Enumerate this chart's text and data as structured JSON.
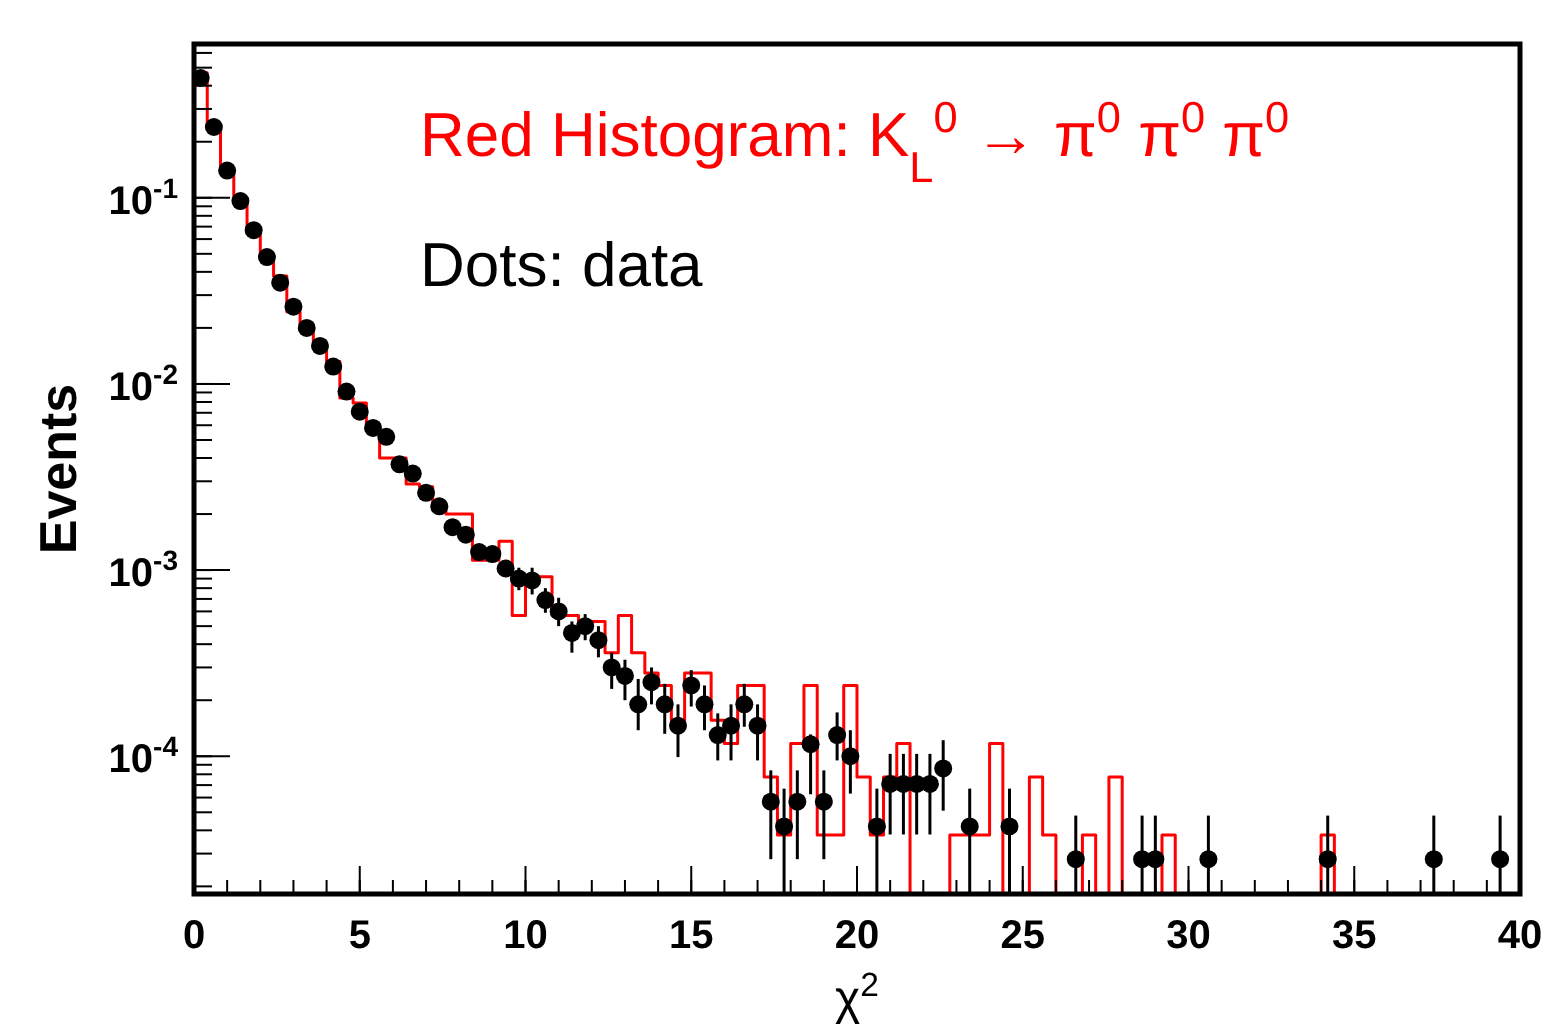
{
  "chart_data": {
    "type": "histogram",
    "xlabel": "χ$^{2}$",
    "ylabel": "Events",
    "annotations": [
      "Red Histogram: K$_{L}$$^{0}$ → π$^{0}$ π$^{0}$ π$^{0}$",
      "Dots: data"
    ],
    "log": "y",
    "grid": false,
    "marker": "circle",
    "xlim": [
      0,
      40
    ],
    "xticks": [
      0,
      5,
      10,
      15,
      20,
      25,
      30,
      35,
      40
    ],
    "ylim": [
      1.82e-05,
      0.67
    ],
    "yticks": [
      {
        "value": 0.0001,
        "label": "10$^{-4}$"
      },
      {
        "value": 0.001,
        "label": "10$^{-3}$"
      },
      {
        "value": 0.01,
        "label": "10$^{-2}$"
      },
      {
        "value": 0.1,
        "label": "10$^{-1}$"
      }
    ],
    "bins": [
      0,
      0.4,
      0.8,
      1.2,
      1.6,
      2,
      2.4,
      2.8,
      3.2,
      3.6,
      4,
      4.4,
      4.8,
      5.2,
      5.6,
      6,
      6.4,
      6.8,
      7.2,
      7.6,
      8,
      8.4,
      8.8,
      9.2,
      9.6,
      10,
      10.4,
      10.8,
      11.2,
      11.6,
      12,
      12.4,
      12.8,
      13.2,
      13.6,
      14,
      14.4,
      14.8,
      15.2,
      15.6,
      16,
      16.4,
      16.8,
      17.2,
      17.6,
      18,
      18.4,
      18.8,
      19.2,
      19.6,
      20,
      20.4,
      20.8,
      21.2,
      21.6,
      22,
      22.4,
      22.8,
      23.2,
      23.6,
      24,
      24.4,
      24.8,
      25.2,
      25.6,
      26,
      26.4,
      26.8,
      27.2,
      27.6,
      28,
      28.4,
      28.8,
      29.2,
      29.6,
      30,
      30.4,
      30.8,
      31.2,
      31.6,
      32,
      32.4,
      32.8,
      33.2,
      33.6,
      34,
      34.4,
      34.8,
      35.2,
      35.6,
      36,
      36.4,
      36.8,
      37.2,
      37.6,
      38,
      38.4,
      38.8,
      39.2,
      39.6,
      40
    ],
    "series": [
      {
        "color": "#ff0000",
        "values": [
          0.47,
          0.245,
          0.14,
          0.1,
          0.065,
          0.048,
          0.038,
          0.0244,
          0.0204,
          0.0165,
          0.0132,
          0.0084,
          0.0079,
          0.0061,
          0.004,
          0.004,
          0.0029,
          0.0028,
          0.0021,
          0.002,
          0.002,
          0.00113,
          0.00113,
          0.00143,
          0.00057,
          0.00092,
          0.00092,
          0.00057,
          0.00057,
          0.00053,
          0.00053,
          0.00036,
          0.00057,
          0.00036,
          0.00028,
          0.00024,
          0.000156,
          0.00028,
          0.00028,
          0.000156,
          0.000117,
          0.00024,
          0.00024,
          7.74e-05,
          3.78e-05,
          0.000117,
          0.00024,
          3.78e-05,
          3.78e-05,
          0.00024,
          7.74e-05,
          3.78e-05,
          7.74e-05,
          0.000117,
          null,
          null,
          null,
          3.78e-05,
          3.78e-05,
          3.78e-05,
          0.000117,
          null,
          null,
          7.74e-05,
          3.78e-05,
          null,
          null,
          3.78e-05,
          null,
          7.74e-05,
          null,
          null,
          null,
          3.78e-05,
          null,
          null,
          null,
          null,
          null,
          null,
          null,
          null,
          null,
          null,
          null,
          3.78e-05,
          null,
          null,
          null,
          null,
          null,
          null,
          null,
          null,
          null,
          null,
          null,
          null,
          null,
          null
        ]
      },
      {
        "type": "scatter",
        "color": "#000000",
        "x": [
          0.2,
          0.6,
          1,
          1.4,
          1.8,
          2.2,
          2.6,
          3,
          3.4,
          3.8,
          4.2,
          4.6,
          5,
          5.4,
          5.8,
          6.2,
          6.6,
          7,
          7.4,
          7.8,
          8.2,
          8.6,
          9,
          9.4,
          9.8,
          10.2,
          10.6,
          11,
          11.4,
          11.8,
          12.2,
          12.6,
          13,
          13.4,
          13.8,
          14.2,
          14.6,
          15,
          15.4,
          15.8,
          16.2,
          16.6,
          17,
          17.4,
          17.8,
          18.2,
          18.6,
          19,
          19.4,
          19.8,
          20.6,
          21,
          21.4,
          21.8,
          22.2,
          22.6,
          23.4,
          24.6,
          26.6,
          28.6,
          29,
          30.6,
          34.2,
          37.4,
          39.4
        ],
        "values": [
          0.44,
          0.24,
          0.14,
          0.096,
          0.067,
          0.048,
          0.035,
          0.026,
          0.02,
          0.016,
          0.0124,
          0.0091,
          0.0071,
          0.0058,
          0.0052,
          0.0037,
          0.0033,
          0.0026,
          0.0022,
          0.0017,
          0.00155,
          0.00125,
          0.00122,
          0.00102,
          0.0009,
          0.00088,
          0.00069,
          0.0006,
          0.00046,
          0.0005,
          0.00042,
          0.0003,
          0.00027,
          0.00019,
          0.00025,
          0.00019,
          0.000146,
          0.00024,
          0.00019,
          0.00013,
          0.000146,
          0.00019,
          0.000146,
          5.7e-05,
          4.2e-05,
          5.7e-05,
          0.000116,
          5.7e-05,
          0.00013,
          0.0001,
          4.2e-05,
          7.1e-05,
          7.1e-05,
          7.1e-05,
          7.1e-05,
          8.6e-05,
          4.2e-05,
          4.2e-05,
          2.8e-05,
          2.8e-05,
          2.8e-05,
          2.8e-05,
          2.8e-05,
          2.8e-05,
          2.8e-05
        ],
        "errors": [
          null,
          null,
          null,
          null,
          null,
          null,
          null,
          null,
          null,
          null,
          null,
          null,
          null,
          null,
          null,
          null,
          null,
          null,
          null,
          null,
          null,
          null,
          null,
          null,
          [
            0.00078,
            0.00103
          ],
          [
            0.00074,
            0.00103
          ],
          [
            0.00059,
            0.0008
          ],
          [
            0.0005,
            0.00071
          ],
          [
            0.00036,
            0.00053
          ],
          [
            0.00042,
            0.00058
          ],
          [
            0.00034,
            0.0005
          ],
          [
            0.00023,
            0.00036
          ],
          [
            0.0002,
            0.00033
          ],
          [
            0.000138,
            0.00026
          ],
          [
            0.00019,
            0.0003
          ],
          [
            0.000132,
            0.000245
          ],
          [
            9.9e-05,
            0.00019
          ],
          [
            0.000185,
            0.00029
          ],
          [
            0.000138,
            0.00024
          ],
          [
            9.5e-05,
            0.00017
          ],
          [
            9.5e-05,
            0.00019
          ],
          [
            0.000144,
            0.000245
          ],
          [
            9.5e-05,
            0.00019
          ],
          [
            2.8e-05,
            8.4e-05
          ],
          [
            1.82e-05,
            6.7e-05
          ],
          [
            2.8e-05,
            8.4e-05
          ],
          [
            6.25e-05,
            0.000131
          ],
          [
            2.8e-05,
            8.4e-05
          ],
          [
            9.5e-05,
            0.000172
          ],
          [
            6.3e-05,
            0.000138
          ],
          [
            1.82e-05,
            6.7e-05
          ],
          [
            3.8e-05,
            0.000103
          ],
          [
            3.8e-05,
            0.000103
          ],
          [
            3.8e-05,
            0.000103
          ],
          [
            3.8e-05,
            0.000103
          ],
          [
            5.1e-05,
            0.000122
          ],
          [
            1.82e-05,
            6.7e-05
          ],
          [
            1.82e-05,
            6.7e-05
          ],
          [
            1.82e-05,
            4.8e-05
          ],
          [
            1.82e-05,
            4.8e-05
          ],
          [
            1.82e-05,
            4.8e-05
          ],
          [
            1.82e-05,
            4.8e-05
          ],
          [
            1.82e-05,
            4.8e-05
          ],
          [
            1.82e-05,
            4.8e-05
          ],
          [
            1.82e-05,
            4.8e-05
          ]
        ]
      }
    ]
  }
}
